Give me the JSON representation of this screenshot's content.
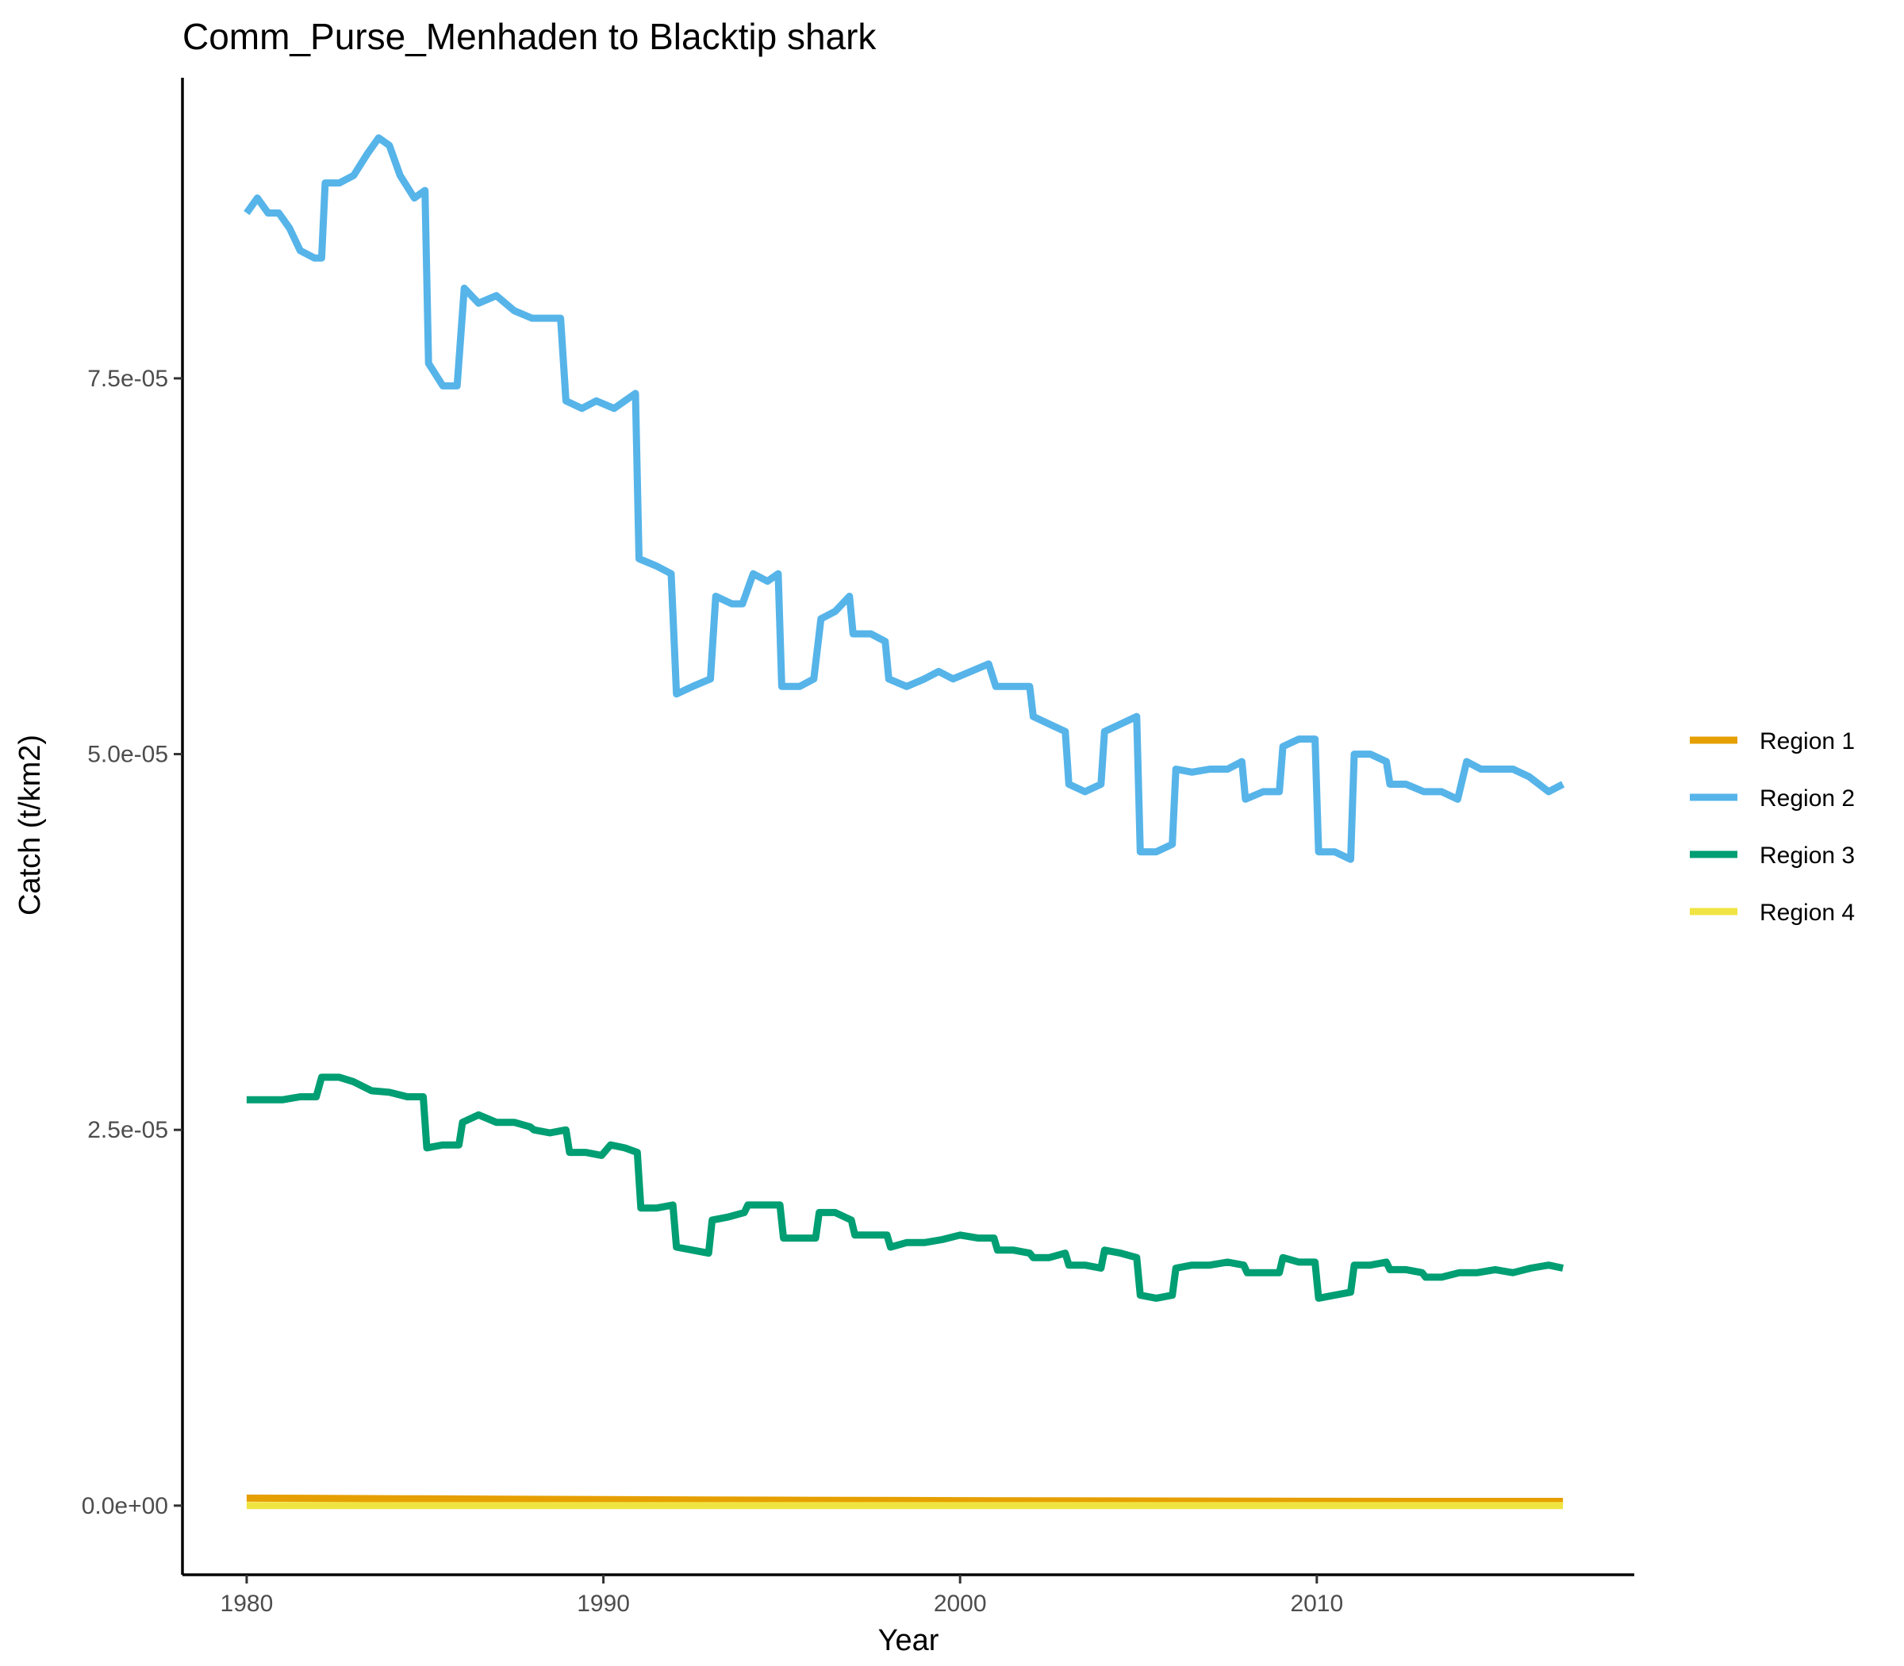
{
  "chart_data": {
    "type": "line",
    "title": "Comm_Purse_Menhaden to Blacktip shark",
    "xlabel": "Year",
    "ylabel": "Catch (t/km2)",
    "xlim": [
      1978.2,
      2018.9
    ],
    "ylim": [
      -4.6e-06,
      9.5e-05
    ],
    "x_ticks": [
      1980,
      1990,
      2000,
      2010
    ],
    "x_tick_labels": [
      "1980",
      "1990",
      "2000",
      "2010"
    ],
    "y_ticks": [
      0,
      2.5e-05,
      5e-05,
      7.5e-05
    ],
    "y_tick_labels": [
      "0.0e+00",
      "2.5e-05",
      "5.0e-05",
      "7.5e-05"
    ],
    "grid": false,
    "legend_position": "right",
    "series": [
      {
        "name": "Region 1",
        "color": "#E69F00",
        "points": [
          [
            1980.0,
            5e-07
          ],
          [
            1985.0,
            4.5e-07
          ],
          [
            1990.0,
            4e-07
          ],
          [
            1995.0,
            3.6e-07
          ],
          [
            2000.0,
            3.3e-07
          ],
          [
            2005.0,
            3.1e-07
          ],
          [
            2010.0,
            2.9e-07
          ],
          [
            2016.9,
            2.8e-07
          ]
        ]
      },
      {
        "name": "Region 2",
        "color": "#56B4E9",
        "points": [
          [
            1980.0,
            8.6e-05
          ],
          [
            1980.3,
            8.7e-05
          ],
          [
            1980.6,
            8.6e-05
          ],
          [
            1980.9,
            8.6e-05
          ],
          [
            1981.2,
            8.5e-05
          ],
          [
            1981.5,
            8.35e-05
          ],
          [
            1981.9,
            8.3e-05
          ],
          [
            1982.1,
            8.3e-05
          ],
          [
            1982.2,
            8.8e-05
          ],
          [
            1982.6,
            8.8e-05
          ],
          [
            1983.0,
            8.85e-05
          ],
          [
            1983.4,
            9e-05
          ],
          [
            1983.7,
            9.1e-05
          ],
          [
            1984.0,
            9.05e-05
          ],
          [
            1984.3,
            8.85e-05
          ],
          [
            1984.7,
            8.7e-05
          ],
          [
            1985.0,
            8.75e-05
          ],
          [
            1985.1,
            7.6e-05
          ],
          [
            1985.5,
            7.45e-05
          ],
          [
            1985.9,
            7.45e-05
          ],
          [
            1986.1,
            8.1e-05
          ],
          [
            1986.5,
            8e-05
          ],
          [
            1987.0,
            8.05e-05
          ],
          [
            1987.5,
            7.95e-05
          ],
          [
            1988.0,
            7.9e-05
          ],
          [
            1988.5,
            7.9e-05
          ],
          [
            1988.8,
            7.9e-05
          ],
          [
            1988.95,
            7.35e-05
          ],
          [
            1989.4,
            7.3e-05
          ],
          [
            1989.8,
            7.35e-05
          ],
          [
            1990.3,
            7.3e-05
          ],
          [
            1990.9,
            7.4e-05
          ],
          [
            1991.0,
            6.3e-05
          ],
          [
            1991.5,
            6.25e-05
          ],
          [
            1991.9,
            6.2e-05
          ],
          [
            1992.05,
            5.4e-05
          ],
          [
            1992.5,
            5.45e-05
          ],
          [
            1993.0,
            5.5e-05
          ],
          [
            1993.15,
            6.05e-05
          ],
          [
            1993.6,
            6e-05
          ],
          [
            1993.9,
            6e-05
          ],
          [
            1994.2,
            6.2e-05
          ],
          [
            1994.6,
            6.15e-05
          ],
          [
            1994.9,
            6.2e-05
          ],
          [
            1995.0,
            5.45e-05
          ],
          [
            1995.5,
            5.45e-05
          ],
          [
            1995.9,
            5.5e-05
          ],
          [
            1996.1,
            5.9e-05
          ],
          [
            1996.5,
            5.95e-05
          ],
          [
            1996.9,
            6.05e-05
          ],
          [
            1997.0,
            5.8e-05
          ],
          [
            1997.5,
            5.8e-05
          ],
          [
            1997.9,
            5.75e-05
          ],
          [
            1998.0,
            5.5e-05
          ],
          [
            1998.5,
            5.45e-05
          ],
          [
            1999.0,
            5.5e-05
          ],
          [
            1999.4,
            5.55e-05
          ],
          [
            1999.8,
            5.5e-05
          ],
          [
            2000.3,
            5.55e-05
          ],
          [
            2000.8,
            5.6e-05
          ],
          [
            2001.0,
            5.45e-05
          ],
          [
            2001.5,
            5.45e-05
          ],
          [
            2001.95,
            5.45e-05
          ],
          [
            2002.05,
            5.25e-05
          ],
          [
            2002.5,
            5.2e-05
          ],
          [
            2002.95,
            5.15e-05
          ],
          [
            2003.05,
            4.8e-05
          ],
          [
            2003.5,
            4.75e-05
          ],
          [
            2003.95,
            4.8e-05
          ],
          [
            2004.05,
            5.15e-05
          ],
          [
            2004.5,
            5.2e-05
          ],
          [
            2004.95,
            5.25e-05
          ],
          [
            2005.05,
            4.35e-05
          ],
          [
            2005.5,
            4.35e-05
          ],
          [
            2005.95,
            4.4e-05
          ],
          [
            2006.05,
            4.9e-05
          ],
          [
            2006.5,
            4.88e-05
          ],
          [
            2007.0,
            4.9e-05
          ],
          [
            2007.5,
            4.9e-05
          ],
          [
            2007.9,
            4.95e-05
          ],
          [
            2008.0,
            4.7e-05
          ],
          [
            2008.5,
            4.75e-05
          ],
          [
            2008.95,
            4.75e-05
          ],
          [
            2009.05,
            5.05e-05
          ],
          [
            2009.5,
            5.1e-05
          ],
          [
            2009.95,
            5.1e-05
          ],
          [
            2010.05,
            4.35e-05
          ],
          [
            2010.5,
            4.35e-05
          ],
          [
            2010.95,
            4.3e-05
          ],
          [
            2011.05,
            5e-05
          ],
          [
            2011.5,
            5e-05
          ],
          [
            2011.95,
            4.95e-05
          ],
          [
            2012.05,
            4.8e-05
          ],
          [
            2012.5,
            4.8e-05
          ],
          [
            2013.0,
            4.75e-05
          ],
          [
            2013.5,
            4.75e-05
          ],
          [
            2013.95,
            4.7e-05
          ],
          [
            2014.2,
            4.95e-05
          ],
          [
            2014.6,
            4.9e-05
          ],
          [
            2015.0,
            4.9e-05
          ],
          [
            2015.5,
            4.9e-05
          ],
          [
            2015.95,
            4.85e-05
          ],
          [
            2016.5,
            4.75e-05
          ],
          [
            2016.9,
            4.8e-05
          ]
        ]
      },
      {
        "name": "Region 3",
        "color": "#009E73",
        "points": [
          [
            1980.0,
            2.7e-05
          ],
          [
            1980.5,
            2.7e-05
          ],
          [
            1981.0,
            2.7e-05
          ],
          [
            1981.5,
            2.72e-05
          ],
          [
            1981.95,
            2.72e-05
          ],
          [
            1982.1,
            2.85e-05
          ],
          [
            1982.6,
            2.85e-05
          ],
          [
            1983.0,
            2.82e-05
          ],
          [
            1983.5,
            2.76e-05
          ],
          [
            1984.0,
            2.75e-05
          ],
          [
            1984.5,
            2.72e-05
          ],
          [
            1984.95,
            2.72e-05
          ],
          [
            1985.05,
            2.38e-05
          ],
          [
            1985.5,
            2.4e-05
          ],
          [
            1985.95,
            2.4e-05
          ],
          [
            1986.05,
            2.55e-05
          ],
          [
            1986.5,
            2.6e-05
          ],
          [
            1987.0,
            2.55e-05
          ],
          [
            1987.5,
            2.55e-05
          ],
          [
            1987.95,
            2.52e-05
          ],
          [
            1988.05,
            2.5e-05
          ],
          [
            1988.5,
            2.48e-05
          ],
          [
            1988.95,
            2.5e-05
          ],
          [
            1989.05,
            2.35e-05
          ],
          [
            1989.5,
            2.35e-05
          ],
          [
            1989.95,
            2.33e-05
          ],
          [
            1990.2,
            2.4e-05
          ],
          [
            1990.6,
            2.38e-05
          ],
          [
            1990.95,
            2.35e-05
          ],
          [
            1991.05,
            1.98e-05
          ],
          [
            1991.5,
            1.98e-05
          ],
          [
            1991.95,
            2e-05
          ],
          [
            1992.05,
            1.72e-05
          ],
          [
            1992.5,
            1.7e-05
          ],
          [
            1992.95,
            1.68e-05
          ],
          [
            1993.05,
            1.9e-05
          ],
          [
            1993.5,
            1.92e-05
          ],
          [
            1993.95,
            1.95e-05
          ],
          [
            1994.05,
            2e-05
          ],
          [
            1994.5,
            2e-05
          ],
          [
            1994.95,
            2e-05
          ],
          [
            1995.05,
            1.78e-05
          ],
          [
            1995.5,
            1.78e-05
          ],
          [
            1995.95,
            1.78e-05
          ],
          [
            1996.05,
            1.95e-05
          ],
          [
            1996.5,
            1.95e-05
          ],
          [
            1996.95,
            1.9e-05
          ],
          [
            1997.05,
            1.8e-05
          ],
          [
            1997.5,
            1.8e-05
          ],
          [
            1997.95,
            1.8e-05
          ],
          [
            1998.05,
            1.72e-05
          ],
          [
            1998.5,
            1.75e-05
          ],
          [
            1999.0,
            1.75e-05
          ],
          [
            1999.5,
            1.77e-05
          ],
          [
            2000.0,
            1.8e-05
          ],
          [
            2000.5,
            1.78e-05
          ],
          [
            2000.95,
            1.78e-05
          ],
          [
            2001.05,
            1.7e-05
          ],
          [
            2001.5,
            1.7e-05
          ],
          [
            2001.95,
            1.68e-05
          ],
          [
            2002.05,
            1.65e-05
          ],
          [
            2002.5,
            1.65e-05
          ],
          [
            2002.95,
            1.68e-05
          ],
          [
            2003.05,
            1.6e-05
          ],
          [
            2003.5,
            1.6e-05
          ],
          [
            2003.95,
            1.58e-05
          ],
          [
            2004.05,
            1.7e-05
          ],
          [
            2004.5,
            1.68e-05
          ],
          [
            2004.95,
            1.65e-05
          ],
          [
            2005.05,
            1.4e-05
          ],
          [
            2005.5,
            1.38e-05
          ],
          [
            2005.95,
            1.4e-05
          ],
          [
            2006.05,
            1.58e-05
          ],
          [
            2006.5,
            1.6e-05
          ],
          [
            2007.0,
            1.6e-05
          ],
          [
            2007.5,
            1.62e-05
          ],
          [
            2007.95,
            1.6e-05
          ],
          [
            2008.05,
            1.55e-05
          ],
          [
            2008.5,
            1.55e-05
          ],
          [
            2008.95,
            1.55e-05
          ],
          [
            2009.05,
            1.65e-05
          ],
          [
            2009.5,
            1.62e-05
          ],
          [
            2009.95,
            1.62e-05
          ],
          [
            2010.05,
            1.38e-05
          ],
          [
            2010.5,
            1.4e-05
          ],
          [
            2010.95,
            1.42e-05
          ],
          [
            2011.05,
            1.6e-05
          ],
          [
            2011.5,
            1.6e-05
          ],
          [
            2011.95,
            1.62e-05
          ],
          [
            2012.05,
            1.57e-05
          ],
          [
            2012.5,
            1.57e-05
          ],
          [
            2012.95,
            1.55e-05
          ],
          [
            2013.05,
            1.52e-05
          ],
          [
            2013.5,
            1.52e-05
          ],
          [
            2014.0,
            1.55e-05
          ],
          [
            2014.5,
            1.55e-05
          ],
          [
            2015.0,
            1.57e-05
          ],
          [
            2015.5,
            1.55e-05
          ],
          [
            2016.0,
            1.58e-05
          ],
          [
            2016.5,
            1.6e-05
          ],
          [
            2016.9,
            1.58e-05
          ]
        ]
      },
      {
        "name": "Region 4",
        "color": "#F0E442",
        "points": [
          [
            1980.0,
            0.0
          ],
          [
            1990.0,
            0.0
          ],
          [
            2000.0,
            0.0
          ],
          [
            2010.0,
            0.0
          ],
          [
            2016.9,
            0.0
          ]
        ]
      }
    ]
  }
}
